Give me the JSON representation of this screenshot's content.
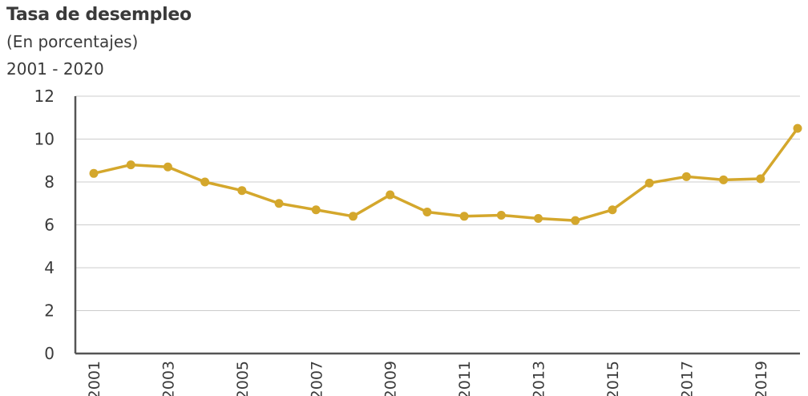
{
  "chart_data": {
    "type": "line",
    "title": "Tasa de desempleo",
    "subtitle": "(En porcentajes)",
    "period": "2001 - 2020",
    "xlabel": "",
    "ylabel": "",
    "ylim": [
      0,
      12
    ],
    "yticks": [
      "0",
      "2",
      "4",
      "6",
      "8",
      "10",
      "12"
    ],
    "xtick_labels": [
      "2001",
      "2003",
      "2005",
      "2007",
      "2009",
      "2011",
      "2013",
      "2015",
      "2017",
      "2019"
    ],
    "x": [
      2001,
      2002,
      2003,
      2004,
      2005,
      2006,
      2007,
      2008,
      2009,
      2010,
      2011,
      2012,
      2013,
      2014,
      2015,
      2016,
      2017,
      2018,
      2019,
      2020
    ],
    "series": [
      {
        "values": [
          8.4,
          8.8,
          8.7,
          8.0,
          7.6,
          7.0,
          6.7,
          6.4,
          7.4,
          6.6,
          6.4,
          6.45,
          6.3,
          6.2,
          6.7,
          7.95,
          8.25,
          8.1,
          8.15,
          10.5
        ]
      }
    ],
    "line_color": "#d4a72c",
    "grid": true,
    "legend": "none"
  }
}
